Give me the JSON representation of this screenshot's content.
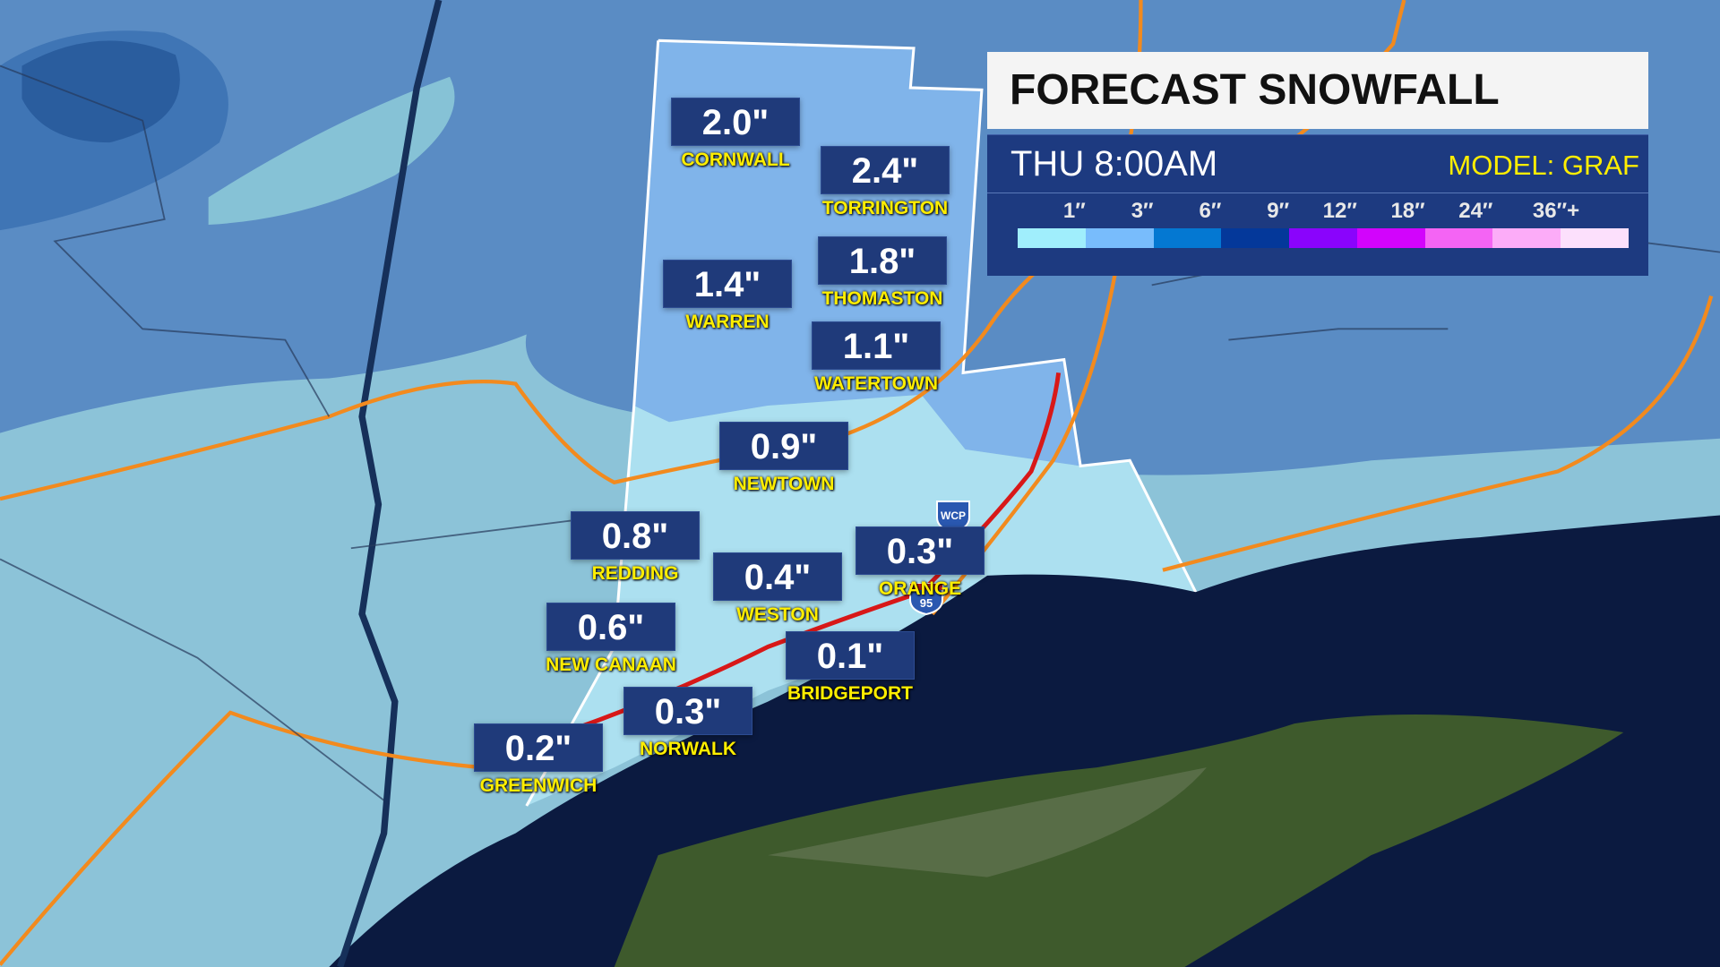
{
  "header": {
    "title": "FORECAST SNOWFALL",
    "time": "THU  8:00AM",
    "model": "MODEL: GRAF"
  },
  "legend": {
    "labels": [
      "1″",
      "3″",
      "6″",
      "9″",
      "12″",
      "18″",
      "24″",
      "36″+"
    ],
    "colors": [
      "#a0eefc",
      "#78bcfc",
      "#0478d2",
      "#04389a",
      "#8a04fc",
      "#d204fc",
      "#f464f4",
      "#fcacf8",
      "#fce0fc"
    ]
  },
  "towns": [
    {
      "name": "CORNWALL",
      "value": "2.0\""
    },
    {
      "name": "TORRINGTON",
      "value": "2.4\""
    },
    {
      "name": "WARREN",
      "value": "1.4\""
    },
    {
      "name": "THOMASTON",
      "value": "1.8\""
    },
    {
      "name": "WATERTOWN",
      "value": "1.1\""
    },
    {
      "name": "NEWTOWN",
      "value": "0.9\""
    },
    {
      "name": "REDDING",
      "value": "0.8\""
    },
    {
      "name": "WESTON",
      "value": "0.4\""
    },
    {
      "name": "ORANGE",
      "value": "0.3\""
    },
    {
      "name": "NEW CANAAN",
      "value": "0.6\""
    },
    {
      "name": "BRIDGEPORT",
      "value": "0.1\""
    },
    {
      "name": "NORWALK",
      "value": "0.3\""
    },
    {
      "name": "GREENWICH",
      "value": "0.2\""
    }
  ],
  "shields": {
    "wcp": "WCP",
    "i95": "95"
  }
}
